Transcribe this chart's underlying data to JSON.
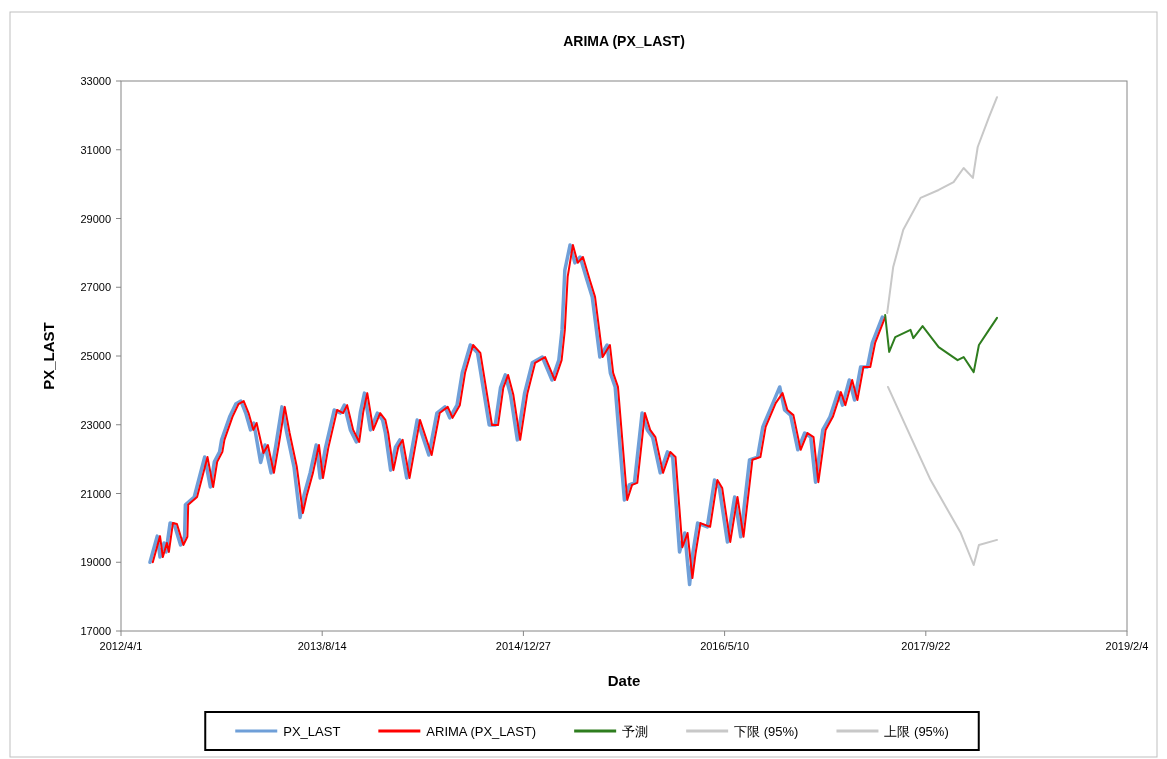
{
  "chart_data": {
    "type": "line",
    "title": "ARIMA (PX_LAST)",
    "xlabel": "Date",
    "ylabel": "PX_LAST",
    "legend": "bottom",
    "xlim": [
      "2012-04-01",
      "2019-02-04"
    ],
    "xticks": [
      {
        "value": "2012-04-01",
        "label": "2012/4/1"
      },
      {
        "value": "2013-08-14",
        "label": "2013/8/14"
      },
      {
        "value": "2014-12-27",
        "label": "2014/12/27"
      },
      {
        "value": "2016-05-10",
        "label": "2016/5/10"
      },
      {
        "value": "2017-09-22",
        "label": "2017/9/22"
      },
      {
        "value": "2019-02-04",
        "label": "2019/2/4"
      }
    ],
    "ylim": [
      17000,
      33000
    ],
    "yticks": [
      17000,
      19000,
      21000,
      23000,
      25000,
      27000,
      29000,
      31000,
      33000
    ],
    "series": [
      {
        "name": "PX_LAST",
        "color": "#6f9fd8",
        "x": [
          "2012-06-12",
          "2012-06-30",
          "2012-07-07",
          "2012-07-17",
          "2012-07-22",
          "2012-08-01",
          "2012-08-11",
          "2012-08-27",
          "2012-09-06",
          "2012-09-08",
          "2012-09-30",
          "2012-10-26",
          "2012-11-09",
          "2012-11-19",
          "2012-12-02",
          "2012-12-07",
          "2012-12-27",
          "2013-01-11",
          "2013-01-24",
          "2013-02-05",
          "2013-02-17",
          "2013-02-25",
          "2013-03-14",
          "2013-03-25",
          "2013-04-09",
          "2013-04-21",
          "2013-05-06",
          "2013-05-18",
          "2013-06-05",
          "2013-06-20",
          "2013-06-30",
          "2013-07-15",
          "2013-07-30",
          "2013-08-09",
          "2013-08-22",
          "2013-09-13",
          "2013-09-28",
          "2013-10-08",
          "2013-10-23",
          "2013-11-07",
          "2013-11-17",
          "2013-11-27",
          "2013-12-12",
          "2013-12-29",
          "2014-01-11",
          "2014-01-18",
          "2014-01-31",
          "2014-02-12",
          "2014-02-23",
          "2014-03-12",
          "2014-04-07",
          "2014-05-06",
          "2014-05-26",
          "2014-06-15",
          "2014-06-27",
          "2014-07-15",
          "2014-07-28",
          "2014-08-17",
          "2014-09-04",
          "2014-10-03",
          "2014-10-18",
          "2014-10-31",
          "2014-11-12",
          "2014-11-25",
          "2014-12-12",
          "2014-12-30",
          "2015-01-18",
          "2015-02-12",
          "2015-03-08",
          "2015-03-25",
          "2015-04-02",
          "2015-04-09",
          "2015-04-22",
          "2015-05-04",
          "2015-05-17",
          "2015-06-03",
          "2015-06-16",
          "2015-07-05",
          "2015-07-23",
          "2015-07-31",
          "2015-08-12",
          "2015-09-04",
          "2015-09-16",
          "2015-09-29",
          "2015-10-18",
          "2015-10-31",
          "2015-11-13",
          "2015-12-02",
          "2015-12-20",
          "2016-01-02",
          "2016-01-19",
          "2016-02-01",
          "2016-02-13",
          "2016-02-21",
          "2016-03-04",
          "2016-03-28",
          "2016-04-15",
          "2016-04-27",
          "2016-05-17",
          "2016-06-04",
          "2016-06-19",
          "2016-07-11",
          "2016-07-31",
          "2016-08-13",
          "2016-09-07",
          "2016-09-24",
          "2016-10-06",
          "2016-10-21",
          "2016-11-08",
          "2016-11-25",
          "2016-12-10",
          "2016-12-22",
          "2017-01-09",
          "2017-01-27",
          "2017-02-16",
          "2017-02-27",
          "2017-03-16",
          "2017-03-29",
          "2017-04-13",
          "2017-04-30",
          "2017-05-12",
          "2017-06-06"
        ],
        "values": [
          19000,
          19760,
          19150,
          19560,
          19300,
          20140,
          20110,
          19500,
          19740,
          20670,
          20900,
          22060,
          21190,
          21920,
          22210,
          22560,
          23230,
          23600,
          23690,
          23340,
          22850,
          23050,
          21900,
          22410,
          21600,
          22410,
          23520,
          22760,
          21770,
          20300,
          20960,
          21600,
          22410,
          21450,
          22320,
          23430,
          23340,
          23570,
          22850,
          22500,
          23370,
          23920,
          22850,
          23340,
          23140,
          22760,
          21680,
          22350,
          22560,
          21450,
          23140,
          22120,
          23340,
          23520,
          23200,
          23570,
          24510,
          25320,
          25090,
          22990,
          22990,
          24070,
          24450,
          23870,
          22560,
          23920,
          24800,
          24970,
          24300,
          24880,
          25760,
          27500,
          28230,
          27710,
          27880,
          27210,
          26720,
          24970,
          25320,
          24510,
          24100,
          20810,
          21250,
          21310,
          23340,
          22850,
          22640,
          21600,
          22210,
          22060,
          19300,
          19850,
          18350,
          19270,
          20140,
          20030,
          21390,
          21160,
          19590,
          20900,
          19740,
          21980,
          22060,
          22940,
          23630,
          24100,
          23430,
          23280,
          22270,
          22760,
          22640,
          21330,
          22850,
          23230,
          23950,
          23570,
          24300,
          23720,
          24680,
          24680,
          25380,
          26130
        ]
      },
      {
        "name": "ARIMA (PX_LAST)",
        "color": "#ff0000",
        "x": [
          "2012-06-19",
          "2012-07-07",
          "2012-07-14",
          "2012-07-24",
          "2012-07-29",
          "2012-08-08",
          "2012-08-18",
          "2012-09-03",
          "2012-09-13",
          "2012-09-15",
          "2012-10-07",
          "2012-11-02",
          "2012-11-16",
          "2012-11-26",
          "2012-12-09",
          "2012-12-14",
          "2013-01-03",
          "2013-01-18",
          "2013-01-31",
          "2013-02-12",
          "2013-02-24",
          "2013-03-04",
          "2013-03-21",
          "2013-04-01",
          "2013-04-16",
          "2013-04-28",
          "2013-05-13",
          "2013-05-25",
          "2013-06-12",
          "2013-06-27",
          "2013-07-07",
          "2013-07-22",
          "2013-08-06",
          "2013-08-16",
          "2013-08-29",
          "2013-09-20",
          "2013-10-05",
          "2013-10-15",
          "2013-10-30",
          "2013-11-14",
          "2013-11-24",
          "2013-12-04",
          "2013-12-19",
          "2014-01-05",
          "2014-01-18",
          "2014-01-25",
          "2014-02-07",
          "2014-02-19",
          "2014-03-02",
          "2014-03-19",
          "2014-04-14",
          "2014-05-13",
          "2014-06-02",
          "2014-06-22",
          "2014-07-04",
          "2014-07-22",
          "2014-08-04",
          "2014-08-24",
          "2014-09-11",
          "2014-10-10",
          "2014-10-25",
          "2014-11-07",
          "2014-11-19",
          "2014-12-02",
          "2014-12-19",
          "2015-01-06",
          "2015-01-25",
          "2015-02-19",
          "2015-03-15",
          "2015-04-01",
          "2015-04-09",
          "2015-04-16",
          "2015-04-29",
          "2015-05-11",
          "2015-05-24",
          "2015-06-10",
          "2015-06-23",
          "2015-07-12",
          "2015-07-30",
          "2015-08-07",
          "2015-08-19",
          "2015-09-11",
          "2015-09-23",
          "2015-10-06",
          "2015-10-25",
          "2015-11-07",
          "2015-11-20",
          "2015-12-09",
          "2015-12-27",
          "2016-01-09",
          "2016-01-26",
          "2016-02-08",
          "2016-02-20",
          "2016-02-28",
          "2016-03-11",
          "2016-04-04",
          "2016-04-22",
          "2016-05-04",
          "2016-05-24",
          "2016-06-11",
          "2016-06-26",
          "2016-07-18",
          "2016-08-07",
          "2016-08-20",
          "2016-09-14",
          "2016-10-01",
          "2016-10-13",
          "2016-10-28",
          "2016-11-15",
          "2016-12-02",
          "2016-12-17",
          "2016-12-29",
          "2017-01-16",
          "2017-02-03",
          "2017-02-23",
          "2017-03-06",
          "2017-03-23",
          "2017-04-05",
          "2017-04-20",
          "2017-05-07",
          "2017-05-19",
          "2017-06-13"
        ],
        "values": [
          19000,
          19760,
          19150,
          19560,
          19300,
          20140,
          20110,
          19500,
          19740,
          20670,
          20900,
          22060,
          21190,
          21920,
          22210,
          22560,
          23230,
          23600,
          23690,
          23340,
          22850,
          23050,
          22180,
          22410,
          21600,
          22410,
          23520,
          22760,
          21770,
          20430,
          20960,
          21600,
          22410,
          21450,
          22320,
          23430,
          23340,
          23570,
          22850,
          22500,
          23370,
          23920,
          22850,
          23340,
          23140,
          22760,
          21680,
          22350,
          22560,
          21450,
          23140,
          22120,
          23340,
          23520,
          23200,
          23570,
          24510,
          25320,
          25090,
          22990,
          22990,
          24070,
          24450,
          23870,
          22560,
          23920,
          24800,
          24970,
          24300,
          24880,
          25760,
          27300,
          28230,
          27710,
          27880,
          27210,
          26720,
          24970,
          25320,
          24510,
          24100,
          20810,
          21250,
          21310,
          23340,
          22850,
          22640,
          21600,
          22210,
          22060,
          19440,
          19850,
          18540,
          19270,
          20140,
          20030,
          21390,
          21160,
          19590,
          20900,
          19740,
          21980,
          22060,
          22940,
          23630,
          23920,
          23430,
          23280,
          22270,
          22760,
          22640,
          21330,
          22850,
          23230,
          23950,
          23570,
          24300,
          23720,
          24680,
          24680,
          25380,
          26130
        ]
      },
      {
        "name": "予測",
        "color": "#2e7d1e",
        "x": [
          "2017-06-13",
          "2017-06-23",
          "2017-07-08",
          "2017-08-15",
          "2017-08-22",
          "2017-09-14",
          "2017-10-24",
          "2017-12-10",
          "2017-12-25",
          "2018-01-19",
          "2018-02-01",
          "2018-02-26",
          "2018-03-18"
        ],
        "values": [
          26190,
          25120,
          25550,
          25760,
          25520,
          25870,
          25260,
          24880,
          24970,
          24530,
          25320,
          25760,
          26110
        ]
      },
      {
        "name": "下限 (95%)",
        "color": "#c8c8c8",
        "x": [
          "2017-06-20",
          "2017-08-19",
          "2017-10-04",
          "2017-12-18",
          "2018-01-19",
          "2018-02-01",
          "2018-03-18"
        ],
        "values": [
          24100,
          22560,
          21390,
          19850,
          18920,
          19500,
          19650
        ]
      },
      {
        "name": "上限 (95%)",
        "color": "#c8c8c8",
        "x": [
          "2017-06-18",
          "2017-07-03",
          "2017-07-28",
          "2017-09-09",
          "2017-10-24",
          "2017-11-30",
          "2017-12-25",
          "2018-01-17",
          "2018-01-29",
          "2018-02-26",
          "2018-03-18"
        ],
        "values": [
          26250,
          27590,
          28670,
          29600,
          29830,
          30060,
          30470,
          30180,
          31080,
          31950,
          32530
        ]
      }
    ]
  }
}
